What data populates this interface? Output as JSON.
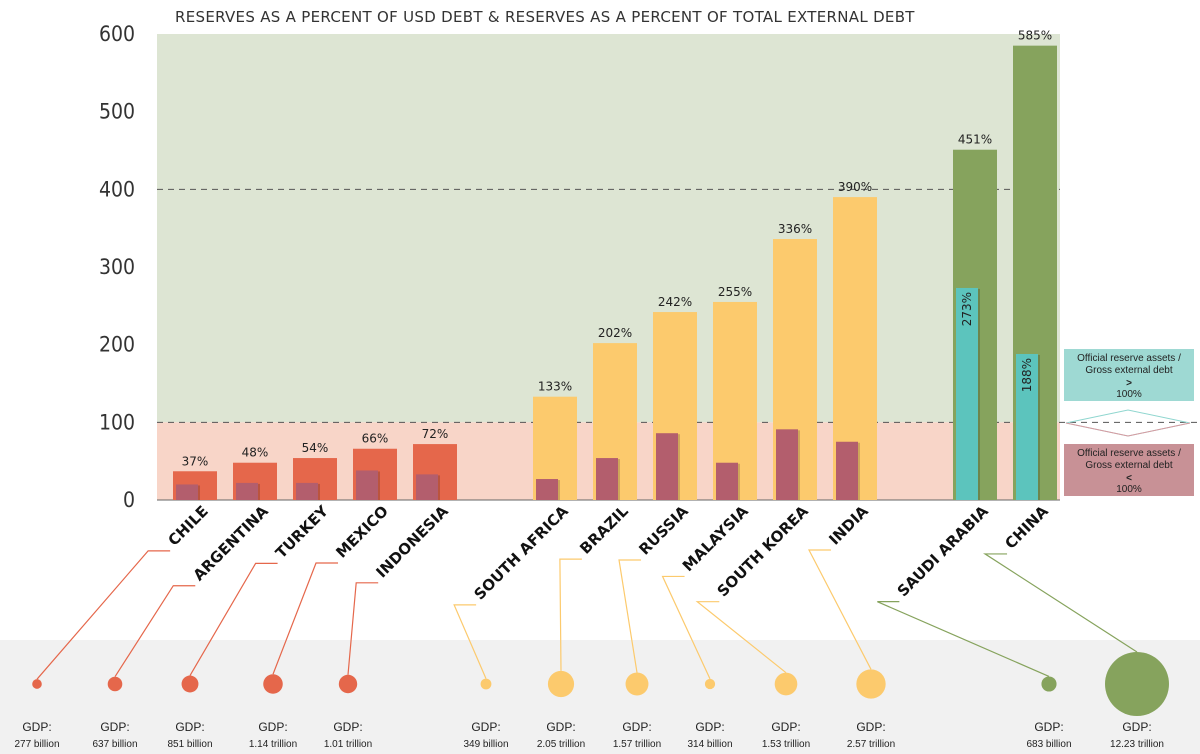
{
  "chart_data": {
    "type": "bar",
    "title": "RESERVES AS A PERCENT OF USD DEBT & RESERVES AS A PERCENT OF TOTAL EXTERNAL DEBT",
    "ylim": [
      0,
      600
    ],
    "yticks": [
      0,
      100,
      200,
      300,
      400,
      500,
      600
    ],
    "reference_lines": [
      100,
      400
    ],
    "categories": [
      "CHILE",
      "ARGENTINA",
      "TURKEY",
      "MEXICO",
      "INDONESIA",
      "SOUTH AFRICA",
      "BRAZIL",
      "RUSSIA",
      "MALAYSIA",
      "SOUTH KOREA",
      "INDIA",
      "SAUDI ARABIA",
      "CHINA"
    ],
    "groups": [
      0,
      0,
      0,
      0,
      0,
      1,
      1,
      1,
      1,
      1,
      1,
      2,
      2
    ],
    "series": [
      {
        "values": [
          37,
          48,
          54,
          66,
          72,
          133,
          202,
          242,
          255,
          336,
          390,
          451,
          585
        ],
        "labels": [
          "37%",
          "48%",
          "54%",
          "66%",
          "72%",
          "133%",
          "202%",
          "242%",
          "255%",
          "336%",
          "390%",
          "451%",
          "585%"
        ]
      },
      {
        "values": [
          20,
          22,
          22,
          38,
          33,
          27,
          54,
          86,
          48,
          91,
          75,
          273,
          188
        ],
        "labels": [
          "",
          "",
          "",
          "",
          "",
          "",
          "",
          "",
          "",
          "",
          "",
          "273%",
          "188%"
        ]
      }
    ],
    "gdp": [
      {
        "label": "GDP:",
        "value": "277 billion",
        "amount": 277
      },
      {
        "label": "GDP:",
        "value": "637 billion",
        "amount": 637
      },
      {
        "label": "GDP:",
        "value": "851 billion",
        "amount": 851
      },
      {
        "label": "GDP:",
        "value": "1.14 trillion",
        "amount": 1140
      },
      {
        "label": "GDP:",
        "value": "1.01 trillion",
        "amount": 1010
      },
      {
        "label": "GDP:",
        "value": "349 billion",
        "amount": 349
      },
      {
        "label": "GDP:",
        "value": "2.05 trillion",
        "amount": 2050
      },
      {
        "label": "GDP:",
        "value": "1.57 trillion",
        "amount": 1570
      },
      {
        "label": "GDP:",
        "value": "314 billion",
        "amount": 314
      },
      {
        "label": "GDP:",
        "value": "1.53 trillion",
        "amount": 1530
      },
      {
        "label": "GDP:",
        "value": "2.57 trillion",
        "amount": 2570
      },
      {
        "label": "GDP:",
        "value": "683 billion",
        "amount": 683
      },
      {
        "label": "GDP:",
        "value": "12.23 trillion",
        "amount": 12230
      }
    ],
    "legend": [
      {
        "lines": [
          "Official reserve assets /",
          "Gross external debt",
          ">",
          "100%"
        ]
      },
      {
        "lines": [
          "Official reserve assets /",
          "Gross external debt",
          "<",
          "100%"
        ]
      }
    ]
  },
  "colors": {
    "bg_above": "#dde5d3",
    "bg_below": "#f8d5c8",
    "group_bars": [
      "#e5674b",
      "#fcca6d",
      "#86a35d"
    ],
    "inner_bars": [
      "#b35e6d",
      "#b35e6d",
      "#5cc4bd"
    ],
    "legend_above": "#9ed9d3",
    "legend_below": "#c89196",
    "bottom_band": "#f1f1f1"
  }
}
